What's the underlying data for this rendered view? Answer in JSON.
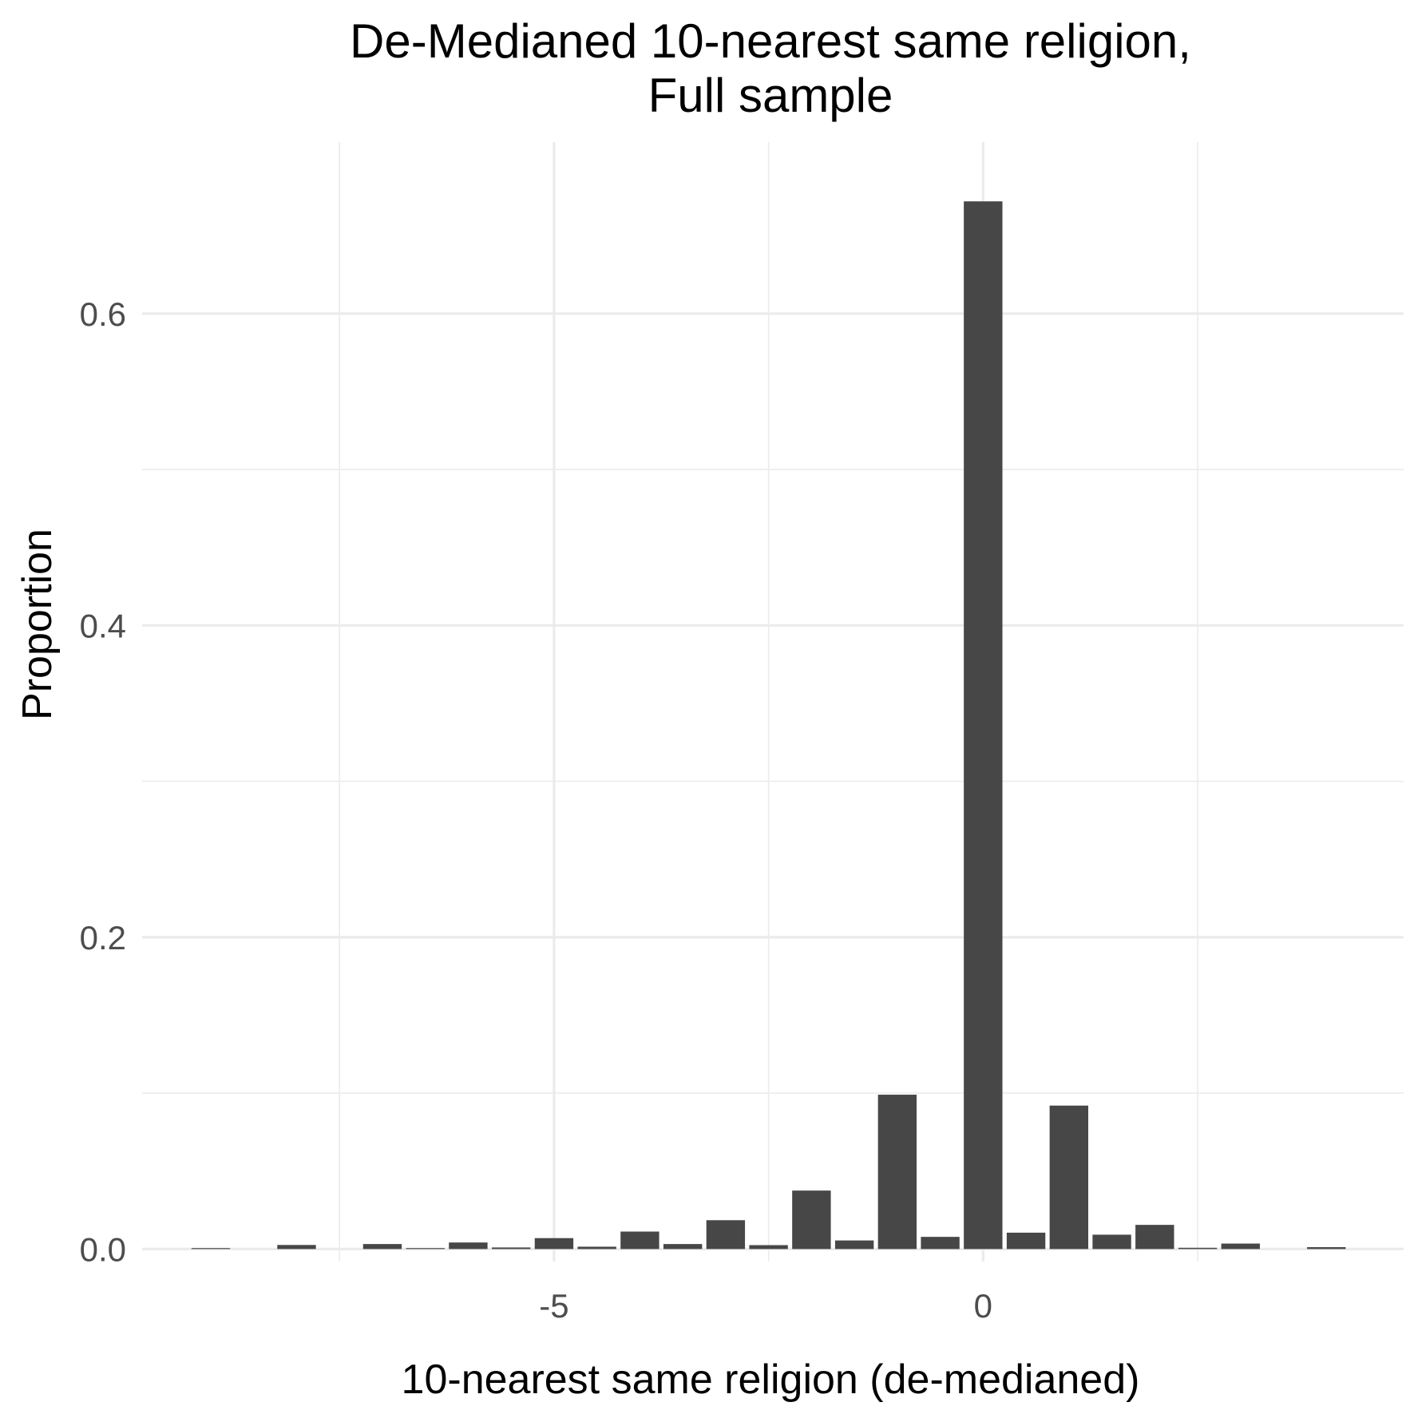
{
  "chart_data": {
    "type": "bar",
    "title_lines": [
      "De-Medianed 10-nearest same religion,",
      "Full sample"
    ],
    "xlabel": "10-nearest same religion (de-medianed)",
    "ylabel": "Proportion",
    "xlim": [
      -9.8,
      4.9
    ],
    "ylim": [
      -0.008,
      0.71
    ],
    "x_ticks": [
      -5,
      0
    ],
    "x_tick_labels": [
      "-5",
      "0"
    ],
    "x_minor": [
      -7.5,
      -2.5,
      2.5
    ],
    "y_ticks": [
      0.0,
      0.2,
      0.4,
      0.6
    ],
    "y_tick_labels": [
      "0.0",
      "0.2",
      "0.4",
      "0.6"
    ],
    "y_minor": [
      0.1,
      0.3,
      0.5
    ],
    "grid": true,
    "bar_width": 0.45,
    "x": [
      -9.0,
      -8.0,
      -7.0,
      -6.5,
      -6.0,
      -5.5,
      -5.0,
      -4.5,
      -4.0,
      -3.5,
      -3.0,
      -2.5,
      -2.0,
      -1.5,
      -1.0,
      -0.5,
      0.0,
      0.5,
      1.0,
      1.5,
      2.0,
      2.5,
      3.0,
      4.0
    ],
    "values": [
      0.0006,
      0.0026,
      0.0032,
      0.0006,
      0.0042,
      0.001,
      0.007,
      0.0015,
      0.0112,
      0.0032,
      0.0185,
      0.0025,
      0.0375,
      0.0055,
      0.099,
      0.0078,
      0.672,
      0.0105,
      0.092,
      0.0092,
      0.0155,
      0.0008,
      0.0035,
      0.0012
    ]
  }
}
